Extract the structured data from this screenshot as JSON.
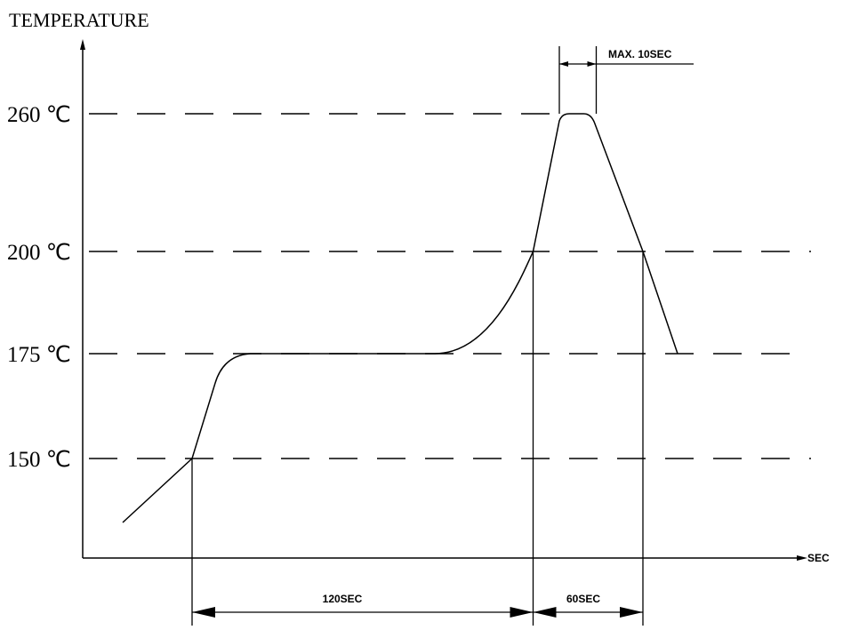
{
  "chart_data": {
    "type": "line",
    "title": "",
    "ylabel": "TEMPERATURE",
    "xlabel": "SEC",
    "y_levels": [
      {
        "value": 150,
        "label": "150 ℃"
      },
      {
        "value": 175,
        "label": "175 ℃"
      },
      {
        "value": 200,
        "label": "200 ℃"
      },
      {
        "value": 260,
        "label": "260 ℃"
      }
    ],
    "series": [
      {
        "x": [
          0,
          60,
          80,
          95,
          270,
          305,
          335,
          355,
          380,
          405,
          415,
          450,
          480
        ],
        "y": [
          124,
          150,
          168,
          175,
          175,
          182,
          190,
          200,
          260,
          260,
          255,
          200,
          175
        ]
      }
    ],
    "annotations": [
      {
        "label": "120SEC",
        "from_x": 60,
        "to_x": 355
      },
      {
        "label": "60SEC",
        "from_x": 355,
        "to_x": 450
      },
      {
        "label": "MAX. 10SEC",
        "from_x": 380,
        "to_x": 405
      }
    ],
    "grid": false,
    "legend": "none"
  }
}
